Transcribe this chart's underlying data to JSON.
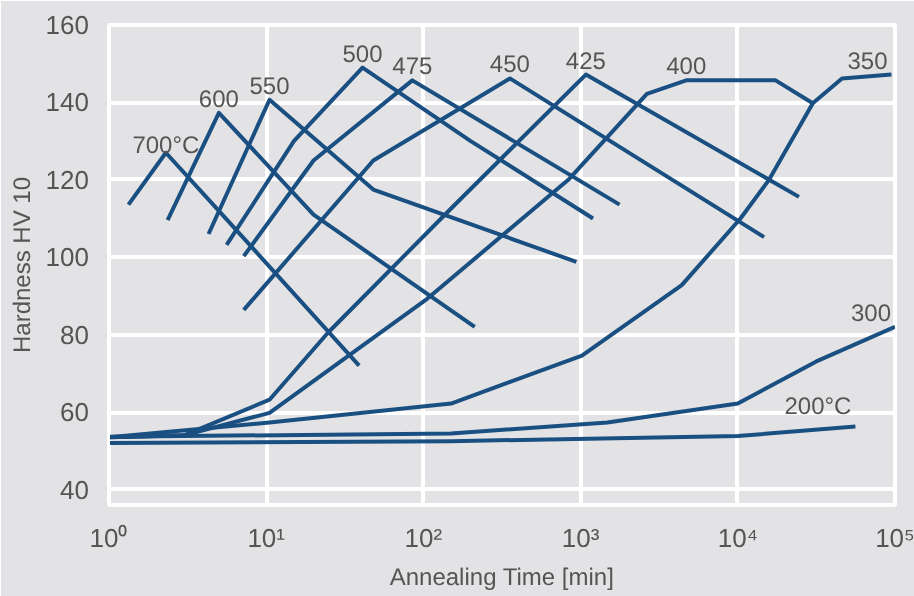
{
  "chart_data": {
    "type": "line",
    "xlabel": "Annealing Time [min]",
    "ylabel": "Hardness HV 10",
    "log": "x",
    "grid": true,
    "marker": "none",
    "line_style": "solid",
    "xlim": [
      1,
      100000
    ],
    "ylim": [
      36,
      160
    ],
    "xticks": [
      {
        "value": 1,
        "label": "10⁰"
      },
      {
        "value": 10,
        "label": "10¹"
      },
      {
        "value": 100,
        "label": "10²"
      },
      {
        "value": 1000,
        "label": "10³"
      },
      {
        "value": 10000,
        "label": "10⁴"
      },
      {
        "value": 100000,
        "label": "10⁵"
      }
    ],
    "yticks": [
      40,
      60,
      80,
      100,
      120,
      140,
      160
    ],
    "series": [
      {
        "name": "700°C",
        "color": "#1a4f82",
        "x": [
          1.33,
          2.3,
          5,
          39
        ],
        "values": [
          113.6,
          127,
          112,
          72
        ]
      },
      {
        "name": "600",
        "color": "#1a4f82",
        "x": [
          2.36,
          5,
          20,
          212
        ],
        "values": [
          109.6,
          137.3,
          111,
          82
        ]
      },
      {
        "name": "550",
        "color": "#1a4f82",
        "x": [
          4.3,
          10.5,
          48,
          940
        ],
        "values": [
          106,
          140.7,
          117.5,
          98.8
        ]
      },
      {
        "name": "500",
        "color": "#1a4f82",
        "x": [
          5.6,
          15,
          41,
          200,
          1200
        ],
        "values": [
          103.2,
          130,
          149,
          130,
          110
        ]
      },
      {
        "name": "475",
        "color": "#1a4f82",
        "x": [
          7.2,
          20,
          85,
          1770
        ],
        "values": [
          100.3,
          125,
          145.7,
          113.6
        ]
      },
      {
        "name": "450",
        "color": "#1a4f82",
        "x": [
          7.2,
          48,
          355,
          14700
        ],
        "values": [
          86.4,
          125,
          146.2,
          105.2
        ]
      },
      {
        "name": "425",
        "color": "#1a4f82",
        "x": [
          1,
          3,
          10.5,
          24.7,
          150,
          1080,
          24500
        ],
        "values": [
          53.5,
          54,
          63.2,
          80.5,
          112.6,
          147.2,
          115.6
        ]
      },
      {
        "name": "400",
        "color": "#1a4f82",
        "x": [
          1,
          3,
          10.5,
          103,
          835,
          2640,
          4700,
          17400,
          30000
        ],
        "values": [
          53.5,
          54,
          59.8,
          88.9,
          120,
          142.2,
          145.7,
          145.7,
          139.8
        ]
      },
      {
        "name": "350",
        "color": "#1a4f82",
        "x": [
          1,
          10.5,
          150,
          1020,
          4400,
          10400,
          15800,
          30000,
          46000,
          95000
        ],
        "values": [
          53.5,
          57.3,
          62.2,
          74.6,
          92.8,
          110,
          120,
          139.8,
          146.2,
          147.2
        ]
      },
      {
        "name": "300",
        "color": "#1a4f82",
        "x": [
          1,
          150,
          1480,
          10000,
          31600,
          100000
        ],
        "values": [
          53.6,
          54.5,
          57.3,
          62.2,
          73.1,
          82
        ]
      },
      {
        "name": "200°C",
        "color": "#1a4f82",
        "x": [
          1,
          150,
          10000,
          56000
        ],
        "values": [
          52,
          52.5,
          53.8,
          56.3
        ]
      }
    ]
  }
}
